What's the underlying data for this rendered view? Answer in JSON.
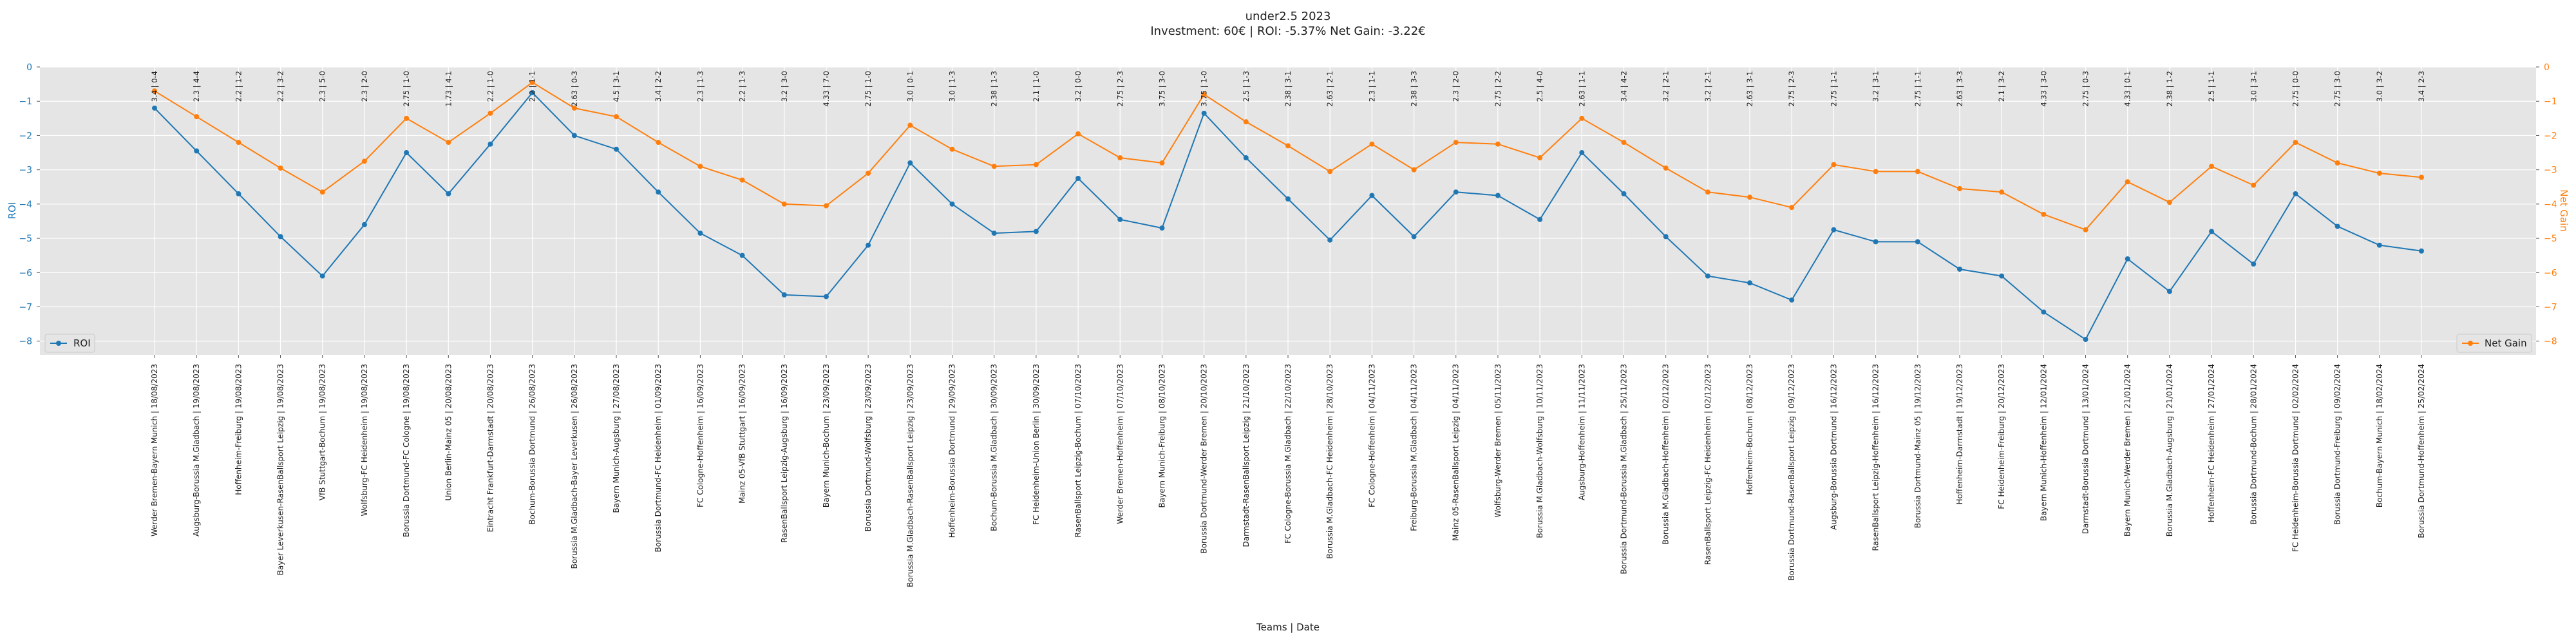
{
  "chart_data": {
    "type": "line",
    "title": "under2.5 2023",
    "subtitle": "Investment: 60€ | ROI: -5.37% Net Gain: -3.22€",
    "xlabel": "Teams | Date",
    "ylabel_left": "ROI",
    "ylabel_right": "Net Gain",
    "ylim": [
      -8.4,
      0
    ],
    "yticks": [
      0,
      -1,
      -2,
      -3,
      -4,
      -5,
      -6,
      -7,
      -8
    ],
    "grid": true,
    "legend_left": "bottom-left",
    "legend_right": "bottom-right",
    "colors": {
      "roi": "#1f77b4",
      "net_gain": "#ff7f0e",
      "plot_bg": "#e5e5e5",
      "grid": "#ffffff"
    },
    "categories": [
      "Werder Bremen-Bayern Munich | 18/08/2023",
      "Augsburg-Borussia M.Gladbach | 19/08/2023",
      "Hoffenheim-Freiburg | 19/08/2023",
      "Bayer Leverkusen-RasenBallsport Leipzig | 19/08/2023",
      "VfB Stuttgart-Bochum | 19/08/2023",
      "Wolfsburg-FC Heidenheim | 19/08/2023",
      "Borussia Dortmund-FC Cologne | 19/08/2023",
      "Union Berlin-Mainz 05 | 20/08/2023",
      "Eintracht Frankfurt-Darmstadt | 20/08/2023",
      "Bochum-Borussia Dortmund | 26/08/2023",
      "Borussia M.Gladbach-Bayer Leverkusen | 26/08/2023",
      "Bayern Munich-Augsburg | 27/08/2023",
      "Borussia Dortmund-FC Heidenheim | 01/09/2023",
      "FC Cologne-Hoffenheim | 16/09/2023",
      "Mainz 05-VfB Stuttgart | 16/09/2023",
      "RasenBallsport Leipzig-Augsburg | 16/09/2023",
      "Bayern Munich-Bochum | 23/09/2023",
      "Borussia Dortmund-Wolfsburg | 23/09/2023",
      "Borussia M.Gladbach-RasenBallsport Leipzig | 23/09/2023",
      "Hoffenheim-Borussia Dortmund | 29/09/2023",
      "Bochum-Borussia M.Gladbach | 30/09/2023",
      "FC Heidenheim-Union Berlin | 30/09/2023",
      "RasenBallsport Leipzig-Bochum | 07/10/2023",
      "Werder Bremen-Hoffenheim | 07/10/2023",
      "Bayern Munich-Freiburg | 08/10/2023",
      "Borussia Dortmund-Werder Bremen | 20/10/2023",
      "Darmstadt-RasenBallsport Leipzig | 21/10/2023",
      "FC Cologne-Borussia M.Gladbach | 22/10/2023",
      "Borussia M.Gladbach-FC Heidenheim | 28/10/2023",
      "FC Cologne-Hoffenheim | 04/11/2023",
      "Freiburg-Borussia M.Gladbach | 04/11/2023",
      "Mainz 05-RasenBallsport Leipzig | 04/11/2023",
      "Wolfsburg-Werder Bremen | 05/11/2023",
      "Borussia M.Gladbach-Wolfsburg | 10/11/2023",
      "Augsburg-Hoffenheim | 11/11/2023",
      "Borussia Dortmund-Borussia M.Gladbach | 25/11/2023",
      "Borussia M.Gladbach-Hoffenheim | 02/12/2023",
      "RasenBallsport Leipzig-FC Heidenheim | 02/12/2023",
      "Hoffenheim-Bochum | 08/12/2023",
      "Borussia Dortmund-RasenBallsport Leipzig | 09/12/2023",
      "Augsburg-Borussia Dortmund | 16/12/2023",
      "RasenBallsport Leipzig-Hoffenheim | 16/12/2023",
      "Borussia Dortmund-Mainz 05 | 19/12/2023",
      "Hoffenheim-Darmstadt | 19/12/2023",
      "FC Heidenheim-Freiburg | 20/12/2023",
      "Bayern Munich-Hoffenheim | 12/01/2024",
      "Darmstadt-Borussia Dortmund | 13/01/2024",
      "Bayern Munich-Werder Bremen | 21/01/2024",
      "Borussia M.Gladbach-Augsburg | 21/01/2024",
      "Hoffenheim-FC Heidenheim | 27/01/2024",
      "Borussia Dortmund-Bochum | 28/01/2024",
      "FC Heidenheim-Borussia Dortmund | 02/02/2024",
      "Borussia Dortmund-Freiburg | 09/02/2024",
      "Bochum-Bayern Munich | 18/02/2024",
      "Borussia Dortmund-Hoffenheim | 25/02/2024"
    ],
    "annotations": [
      "3.4 | 0-4",
      "2.3 | 4-4",
      "2.2 | 1-2",
      "2.2 | 3-2",
      "2.3 | 5-0",
      "2.3 | 2-0",
      "2.75 | 1-0",
      "1.73 | 4-1",
      "2.2 | 1-0",
      "2.2 | 1-1",
      "2.63 | 0-3",
      "4.5 | 3-1",
      "3.4 | 2-2",
      "2.3 | 1-3",
      "2.2 | 1-3",
      "3.2 | 3-0",
      "4.33 | 7-0",
      "2.75 | 1-0",
      "3.0 | 0-1",
      "3.0 | 1-3",
      "2.38 | 1-3",
      "2.1 | 1-0",
      "3.2 | 0-0",
      "2.75 | 2-3",
      "3.75 | 3-0",
      "3.75 | 1-0",
      "2.5 | 1-3",
      "2.38 | 3-1",
      "2.63 | 2-1",
      "2.3 | 1-1",
      "2.38 | 3-3",
      "2.3 | 2-0",
      "2.75 | 2-2",
      "2.5 | 4-0",
      "2.63 | 1-1",
      "3.4 | 4-2",
      "3.2 | 2-1",
      "3.2 | 2-1",
      "2.63 | 3-1",
      "2.75 | 2-3",
      "2.75 | 1-1",
      "3.2 | 3-1",
      "2.75 | 1-1",
      "2.63 | 3-3",
      "2.1 | 3-2",
      "4.33 | 3-0",
      "2.75 | 0-3",
      "4.33 | 0-1",
      "2.38 | 1-2",
      "2.5 | 1-1",
      "3.0 | 3-1",
      "2.75 | 0-0",
      "2.75 | 3-0",
      "3.0 | 3-2",
      "3.4 | 2-3"
    ],
    "series": [
      {
        "name": "ROI",
        "axis": "left",
        "values": [
          -1.2,
          -2.45,
          -3.7,
          -4.95,
          -6.1,
          -4.6,
          -2.5,
          -3.7,
          -2.25,
          -0.75,
          -2.0,
          -2.4,
          -3.65,
          -4.85,
          -5.5,
          -6.65,
          -6.7,
          -5.2,
          -2.8,
          -4.0,
          -4.85,
          -4.8,
          -3.25,
          -4.45,
          -4.7,
          -1.35,
          -2.65,
          -3.85,
          -5.05,
          -3.75,
          -4.95,
          -3.65,
          -3.75,
          -4.45,
          -2.5,
          -3.7,
          -4.95,
          -6.1,
          -6.3,
          -6.8,
          -4.75,
          -5.1,
          -5.1,
          -5.9,
          -6.1,
          -7.15,
          -7.95,
          -5.6,
          -6.55,
          -4.8,
          -5.75,
          -3.7,
          -4.65,
          -5.2,
          -5.37
        ]
      },
      {
        "name": "Net Gain",
        "axis": "right",
        "values": [
          -0.7,
          -1.45,
          -2.2,
          -2.95,
          -3.65,
          -2.75,
          -1.5,
          -2.2,
          -1.35,
          -0.45,
          -1.2,
          -1.45,
          -2.2,
          -2.9,
          -3.3,
          -4.0,
          -4.05,
          -3.1,
          -1.7,
          -2.4,
          -2.9,
          -2.85,
          -1.95,
          -2.65,
          -2.8,
          -0.8,
          -1.6,
          -2.3,
          -3.05,
          -2.25,
          -3.0,
          -2.2,
          -2.25,
          -2.65,
          -1.5,
          -2.2,
          -2.95,
          -3.65,
          -3.8,
          -4.1,
          -2.85,
          -3.05,
          -3.05,
          -3.55,
          -3.65,
          -4.3,
          -4.75,
          -3.35,
          -3.95,
          -2.9,
          -3.45,
          -2.2,
          -2.8,
          -3.1,
          -3.22
        ]
      }
    ]
  }
}
